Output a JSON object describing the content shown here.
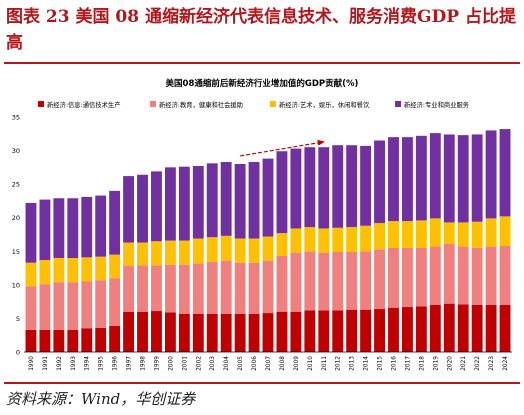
{
  "figure": {
    "title": "图表 23 美国 08 通缩新经济代表信息技术、服务消费GDP 占比提高",
    "source": "资料来源：Wind，华创证券"
  },
  "chart_data": {
    "type": "bar",
    "stacked": true,
    "title": "美国08通缩前后新经济行业增加值的GDP贡献(%)",
    "xlabel": "",
    "ylabel": "",
    "ylim": [
      0,
      35
    ],
    "yticks": [
      0,
      5,
      10,
      15,
      20,
      25,
      30,
      35
    ],
    "grid": false,
    "legend_position": "top",
    "categories": [
      "1990",
      "1991",
      "1992",
      "1993",
      "1994",
      "1995",
      "1996",
      "1997",
      "1998",
      "1999",
      "2000",
      "2001",
      "2002",
      "2003",
      "2004",
      "2005",
      "2006",
      "2007",
      "2008",
      "2009",
      "2010",
      "2011",
      "2012",
      "2013",
      "2014",
      "2015",
      "2016",
      "2017",
      "2018",
      "2019",
      "2020",
      "2021",
      "2022",
      "2023",
      "2024"
    ],
    "series": [
      {
        "name": "新经济:信息:通信技术生产",
        "color": "#c00000",
        "values": [
          3.3,
          3.3,
          3.3,
          3.3,
          3.5,
          3.6,
          3.9,
          6.0,
          6.0,
          6.1,
          5.9,
          5.7,
          5.7,
          5.7,
          5.7,
          5.7,
          5.7,
          5.8,
          6.0,
          6.0,
          6.2,
          6.2,
          6.2,
          6.3,
          6.3,
          6.4,
          6.6,
          6.7,
          6.8,
          7.0,
          7.2,
          7.1,
          7.0,
          7.0,
          7.0
        ]
      },
      {
        "name": "新经济:教育，健康和社会援助",
        "color": "#f08080",
        "values": [
          6.5,
          6.8,
          7.1,
          7.1,
          7.0,
          7.1,
          7.1,
          6.8,
          6.9,
          6.8,
          7.1,
          7.3,
          7.5,
          7.7,
          7.9,
          7.6,
          7.6,
          7.8,
          8.3,
          8.8,
          8.8,
          8.6,
          8.7,
          8.6,
          8.7,
          8.9,
          8.9,
          8.8,
          8.7,
          8.7,
          8.9,
          8.6,
          8.5,
          8.7,
          8.8
        ]
      },
      {
        "name": "新经济:艺术，娱乐，休闲和餐饮",
        "color": "#ffc000",
        "values": [
          3.5,
          3.6,
          3.6,
          3.6,
          3.6,
          3.5,
          3.5,
          3.5,
          3.4,
          3.6,
          3.6,
          3.6,
          3.7,
          3.7,
          3.7,
          3.6,
          3.6,
          3.6,
          3.4,
          3.6,
          3.6,
          3.6,
          3.6,
          3.7,
          3.8,
          3.9,
          4.0,
          4.0,
          4.1,
          4.2,
          3.2,
          3.6,
          3.9,
          4.2,
          4.4
        ]
      },
      {
        "name": "新经济:专业和商业服务",
        "color": "#7030a0",
        "values": [
          8.9,
          9.0,
          8.9,
          8.9,
          9.0,
          9.1,
          9.5,
          9.9,
          10.1,
          10.4,
          10.9,
          11.0,
          10.8,
          11.0,
          11.0,
          11.1,
          11.4,
          11.6,
          12.2,
          11.9,
          11.9,
          12.1,
          12.3,
          12.2,
          11.9,
          12.3,
          12.5,
          12.5,
          12.6,
          12.7,
          13.1,
          13.0,
          13.0,
          13.1,
          13.0
        ]
      }
    ],
    "annotations": [
      {
        "type": "dashed-arrow",
        "color": "#c00000",
        "from": {
          "x": "2005",
          "y": 29.2
        },
        "to": {
          "x": "2011",
          "y": 31.3
        }
      }
    ]
  }
}
